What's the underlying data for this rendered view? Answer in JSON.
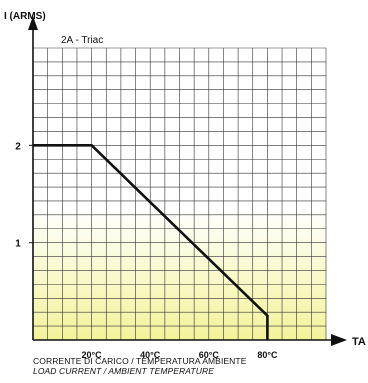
{
  "chart_data": {
    "type": "line",
    "title": "2A - Triac",
    "ylabel": "I (ARMS)",
    "xlabel": "TA",
    "x_tick_labels": [
      "20°C",
      "40°C",
      "60°C",
      "80°C"
    ],
    "x_ticks": [
      20,
      40,
      60,
      80
    ],
    "y_tick_labels": [
      "1",
      "2"
    ],
    "y_ticks": [
      1,
      2
    ],
    "xlim": [
      0,
      100
    ],
    "ylim": [
      0,
      3
    ],
    "grid": true,
    "series": [
      {
        "x": [
          0,
          20,
          80,
          80
        ],
        "y": [
          2,
          2,
          0.25,
          0
        ]
      }
    ],
    "caption_line1": "CORRENTE DI CARICO / TEMPERATURA  AMBIENTE",
    "caption_line2": "LOAD CURRENT / AMBIENT TEMPERATURE",
    "colors": {
      "line": "#111111",
      "grid": "#333333",
      "fill_bottom": "#f3f39a",
      "fill_top": "#ffffff"
    }
  }
}
